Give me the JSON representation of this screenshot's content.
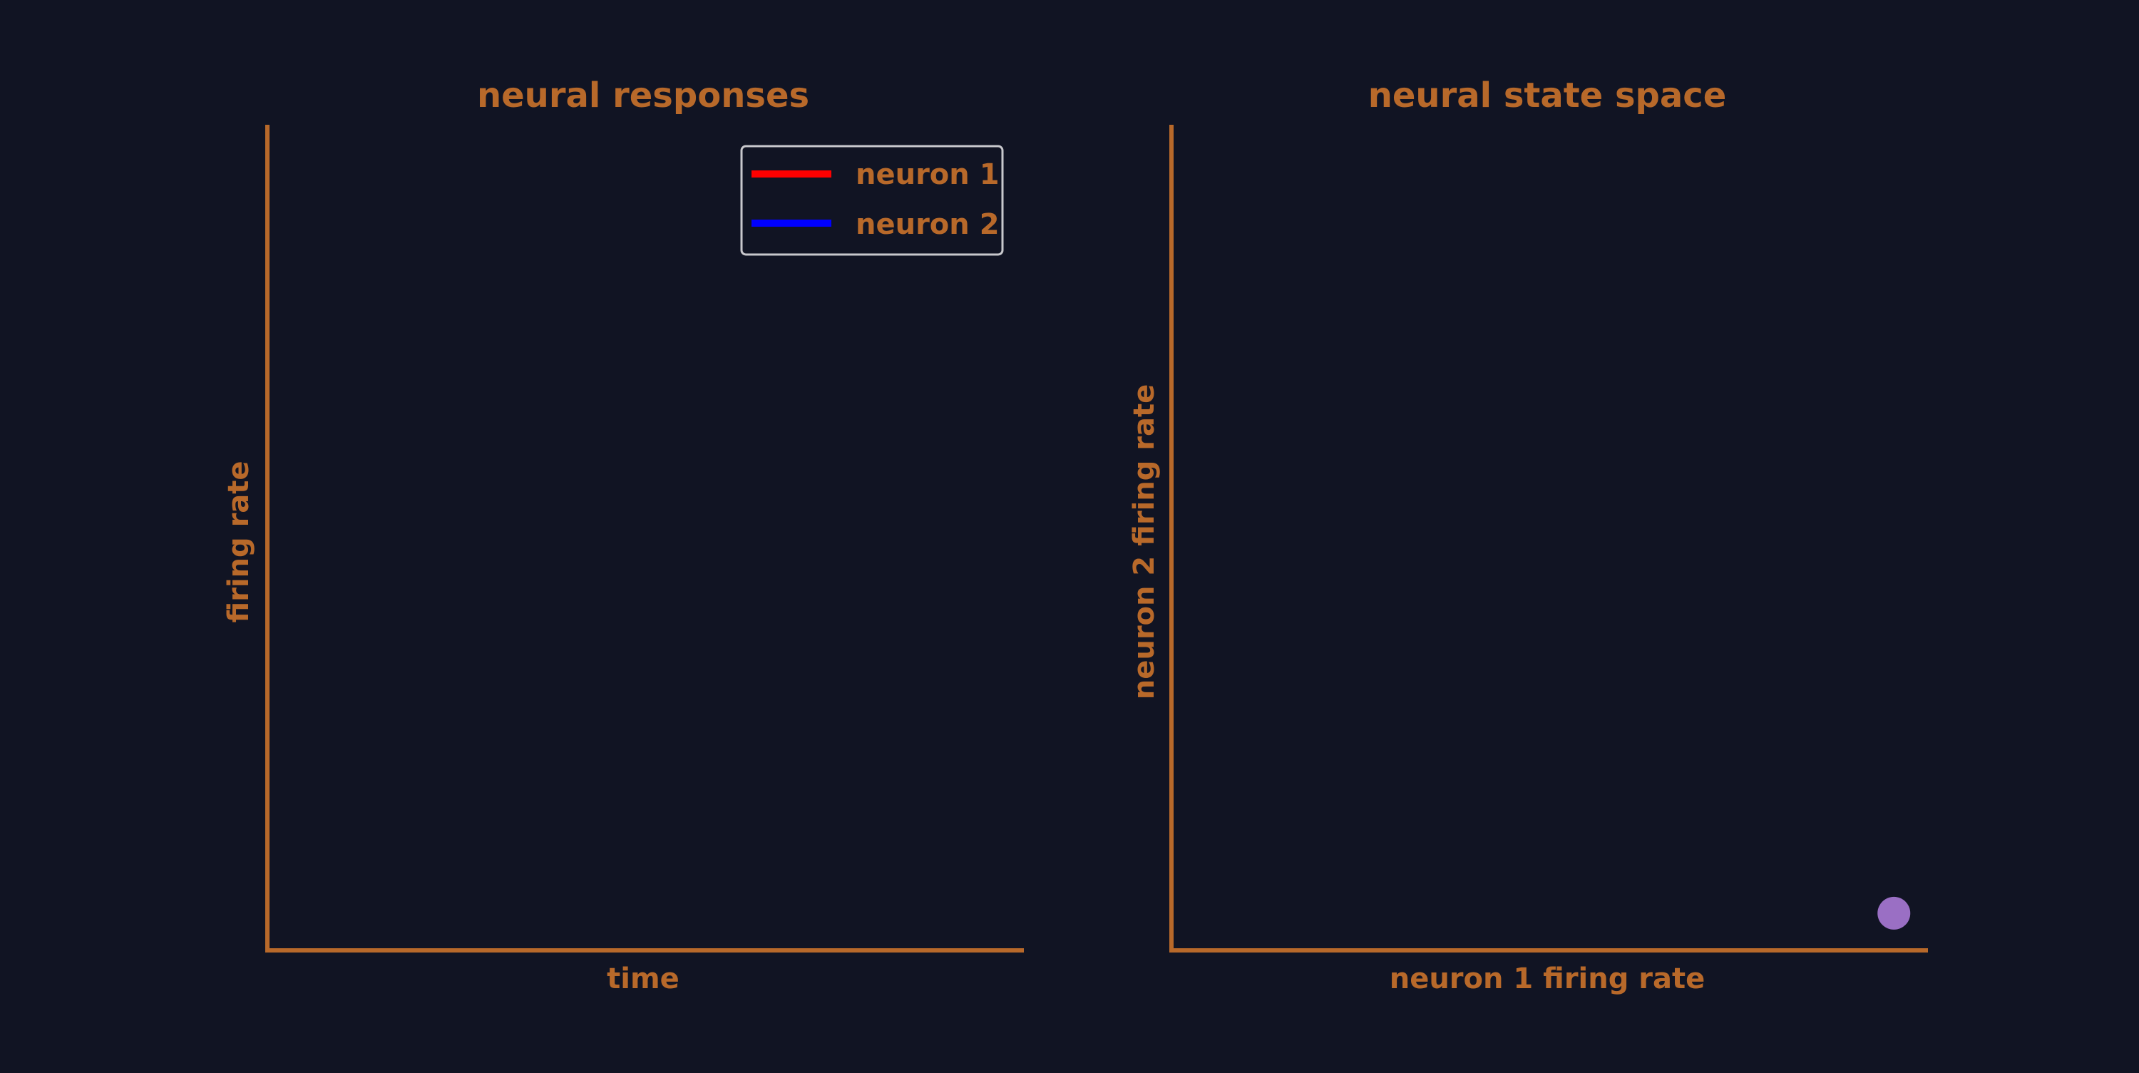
{
  "colors": {
    "background": "#111423",
    "axis": "#b8692a",
    "text": "#b8692a",
    "legend_border": "#c8c8cc",
    "marker": "#9a6fc4"
  },
  "chart_data": [
    {
      "type": "line",
      "title": "neural responses",
      "xlabel": "time",
      "ylabel": "firing rate",
      "xticks": [],
      "yticks": [],
      "grid": false,
      "legend": {
        "placement": "top-right",
        "entries": [
          {
            "label": "neuron 1",
            "color": "#ff0000"
          },
          {
            "label": "neuron 2",
            "color": "#0000ff"
          }
        ]
      },
      "series": [
        {
          "name": "neuron 1",
          "color": "#ff0000",
          "values": []
        },
        {
          "name": "neuron 2",
          "color": "#0000ff",
          "values": []
        }
      ]
    },
    {
      "type": "scatter",
      "title": "neural state space",
      "xlabel": "neuron 1 firing rate",
      "ylabel": "neuron 2 firing rate",
      "xticks": [],
      "yticks": [],
      "grid": false,
      "xlim": [
        0,
        1
      ],
      "ylim": [
        0,
        1
      ],
      "points": [
        {
          "x": 0.955,
          "y": 0.045,
          "color": "#9a6fc4"
        }
      ]
    }
  ]
}
